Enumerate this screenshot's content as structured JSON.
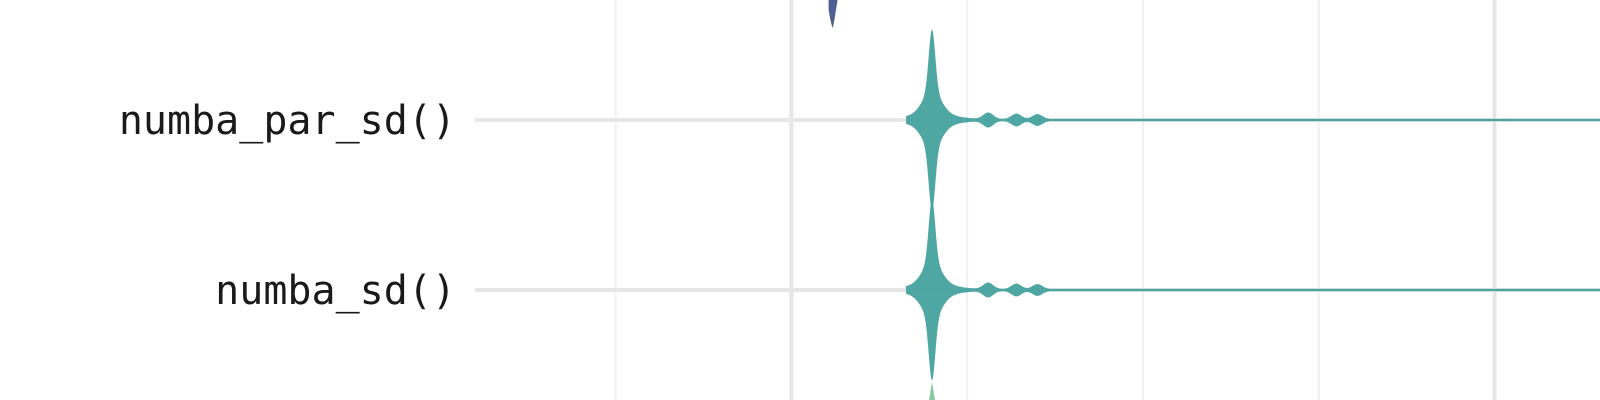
{
  "chart_data": {
    "type": "violin",
    "orientation": "horizontal",
    "categories": [
      "numba_par_sd()",
      "numba_sd()"
    ],
    "series": [
      {
        "category": "numba_par_sd()",
        "peak": 1.4,
        "shoulders": [
          1.56,
          1.64,
          1.7
        ],
        "tail_end": 3.05,
        "color": "#45A29E"
      },
      {
        "category": "numba_sd()",
        "peak": 1.4,
        "shoulders": [
          1.56,
          1.64,
          1.7
        ],
        "tail_end": 3.18,
        "color": "#45A29E"
      }
    ],
    "partial_series": [
      {
        "position": "above",
        "peak": 1.12,
        "color": "#4F5F93"
      },
      {
        "position": "below",
        "peak": 1.4,
        "color": "#8CC8A0"
      }
    ],
    "xlim": [
      0.1,
      3.3
    ],
    "x_gridlines_major": [
      1.0,
      3.0
    ],
    "x_gridlines_minor": [
      0.5,
      1.5,
      2.0,
      2.5
    ],
    "title": "",
    "xlabel": "",
    "ylabel": "",
    "grid": true,
    "legend": "none",
    "colors": {
      "background": "#ffffff",
      "grid_major": "#e6e6e6",
      "grid_minor": "#f0f0f0",
      "tail": "#bdbdbd"
    }
  }
}
